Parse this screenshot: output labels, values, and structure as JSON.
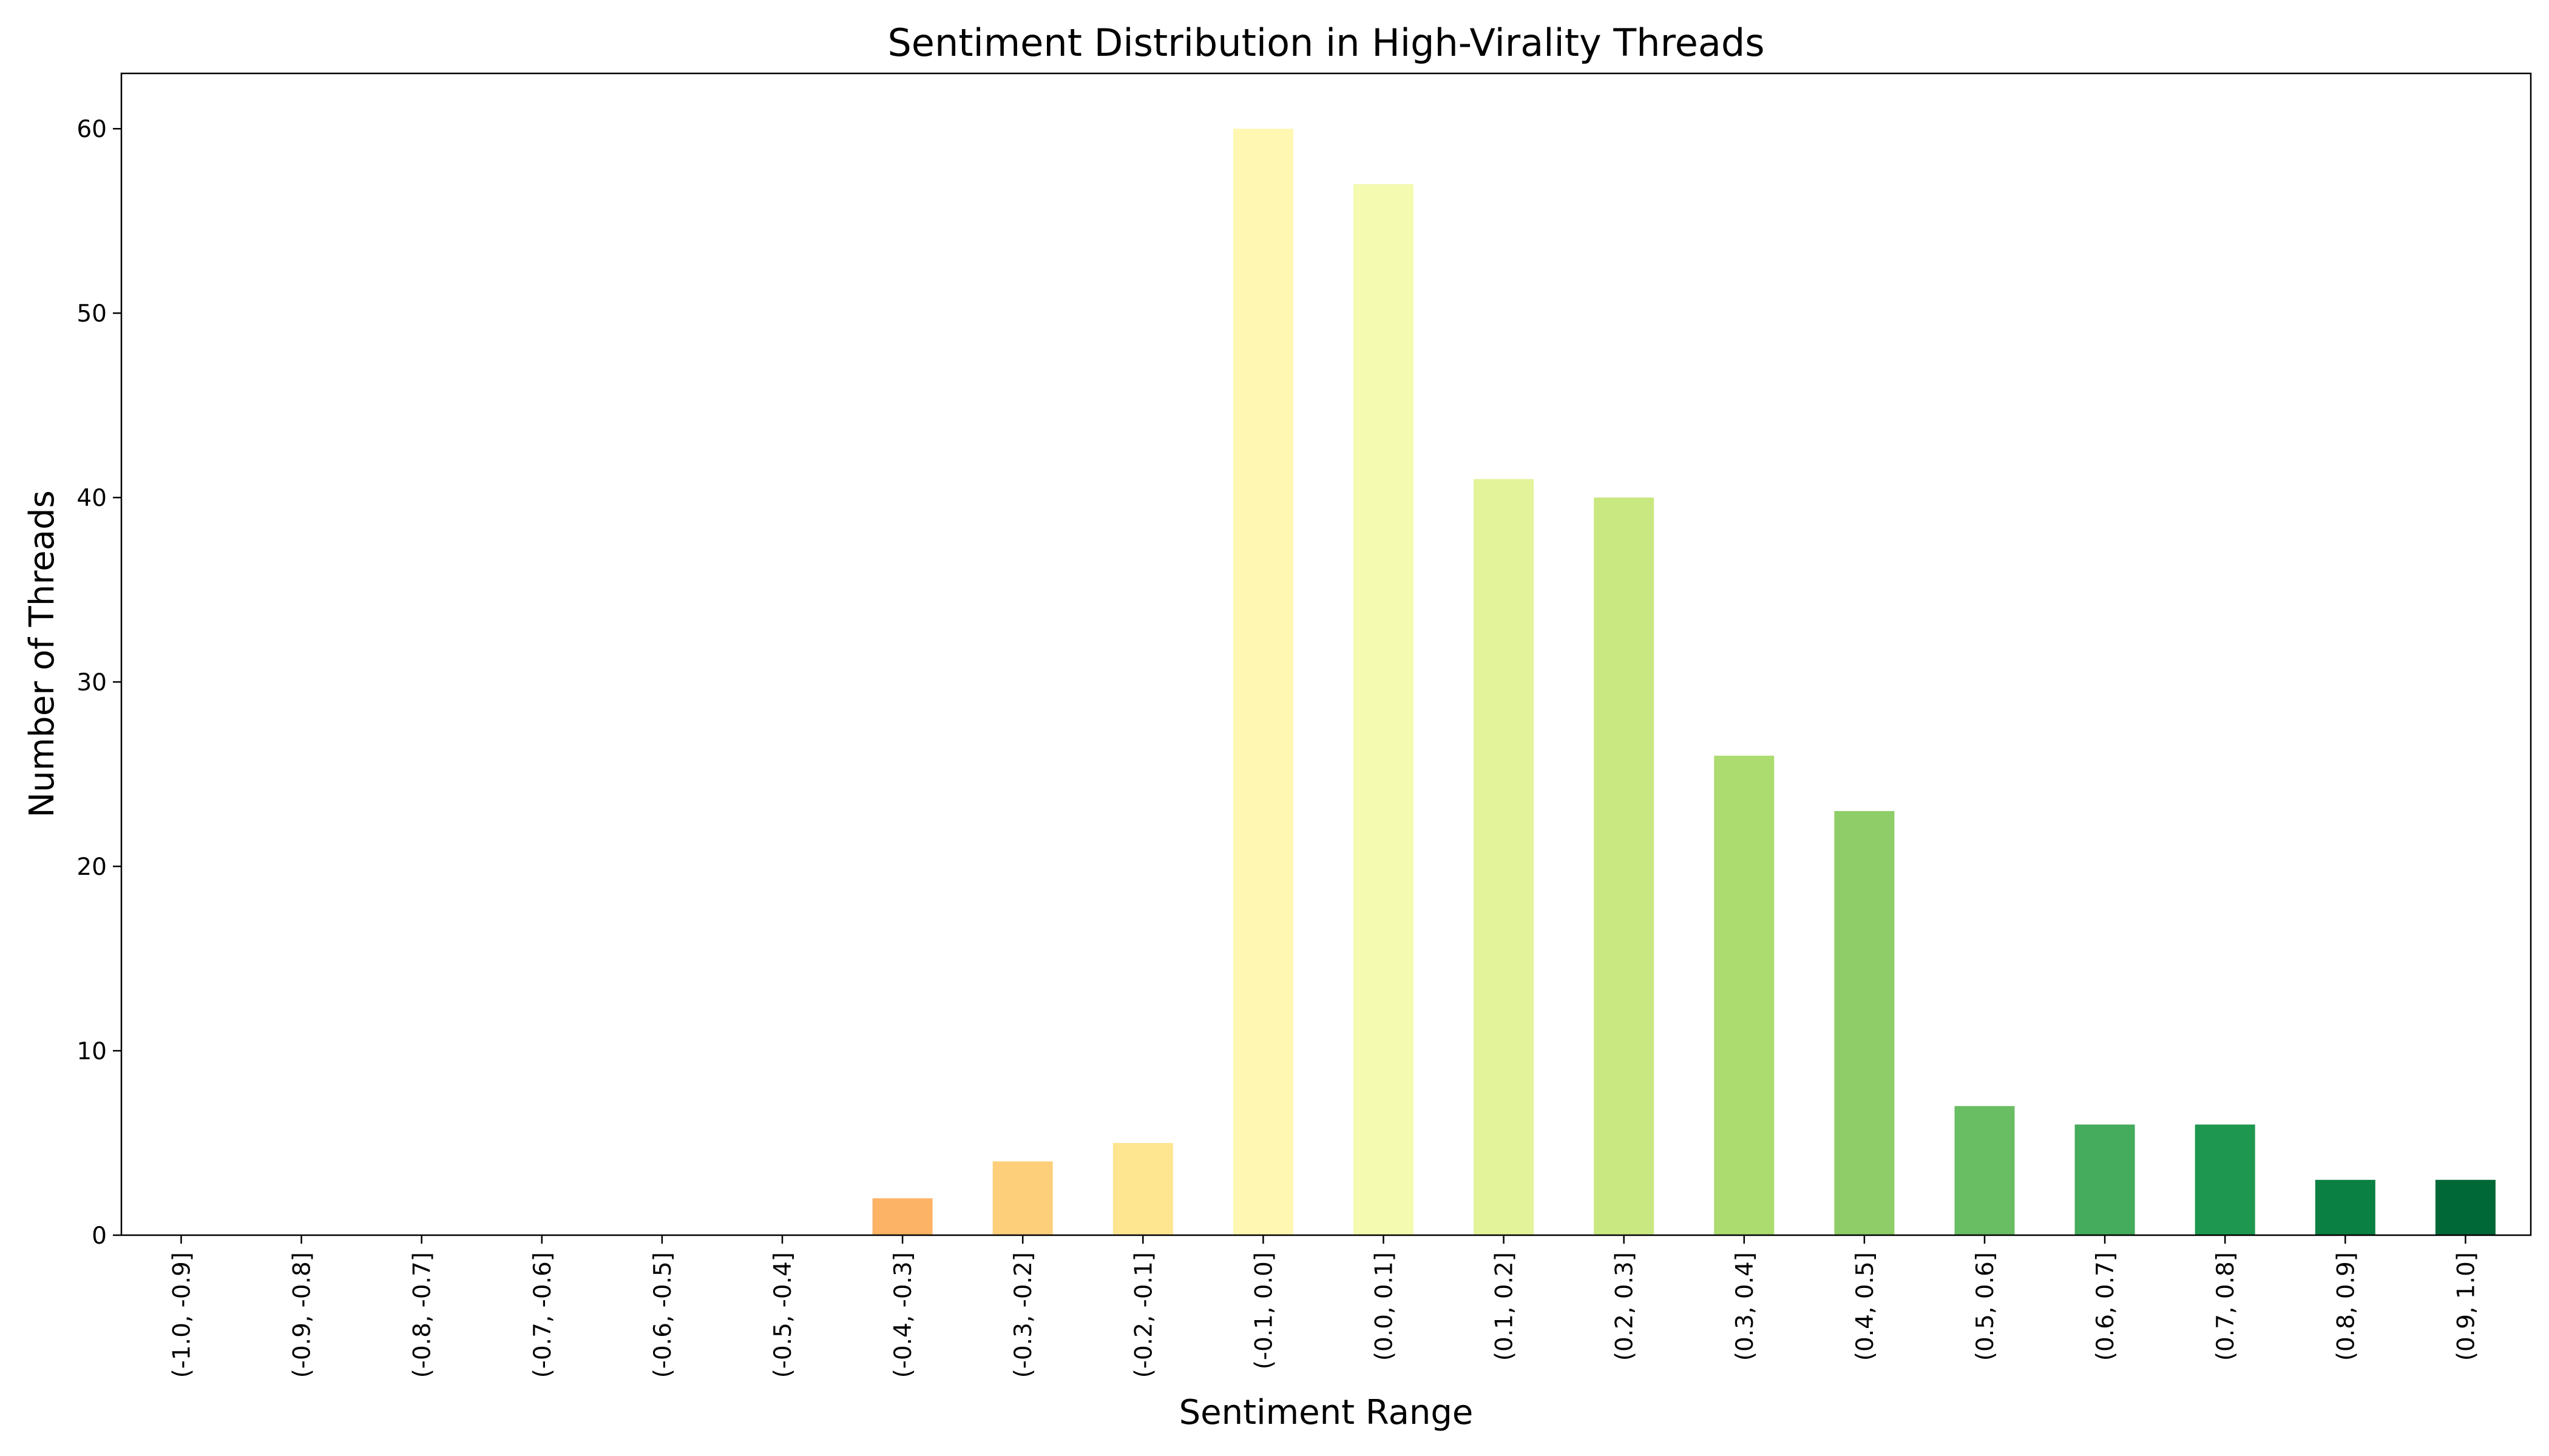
{
  "chart_data": {
    "type": "bar",
    "title": "Sentiment Distribution in High-Virality Threads",
    "xlabel": "Sentiment Range",
    "ylabel": "Number of Threads",
    "ylim": [
      0,
      63
    ],
    "yticks": [
      0,
      10,
      20,
      30,
      40,
      50,
      60
    ],
    "grid": false,
    "categories": [
      "(-1.0, -0.9]",
      "(-0.9, -0.8]",
      "(-0.8, -0.7]",
      "(-0.7, -0.6]",
      "(-0.6, -0.5]",
      "(-0.5, -0.4]",
      "(-0.4, -0.3]",
      "(-0.3, -0.2]",
      "(-0.2, -0.1]",
      "(-0.1, 0.0]",
      "(0.0, 0.1]",
      "(0.1, 0.2]",
      "(0.2, 0.3]",
      "(0.3, 0.4]",
      "(0.4, 0.5]",
      "(0.5, 0.6]",
      "(0.6, 0.7]",
      "(0.7, 0.8]",
      "(0.8, 0.9]",
      "(0.9, 1.0]"
    ],
    "values": [
      0,
      0,
      0,
      0,
      0,
      0,
      2,
      4,
      5,
      60,
      57,
      41,
      40,
      26,
      23,
      7,
      6,
      6,
      3,
      3
    ],
    "colors": [
      "#a50026",
      "#c62a27",
      "#e04f33",
      "#f47d4a",
      "#fa9d58",
      "#fdb365",
      "#fdb365",
      "#fecf7b",
      "#fee590",
      "#fff7b2",
      "#f4fab0",
      "#e2f399",
      "#c9e881",
      "#acdc6f",
      "#8ecd67",
      "#69bd63",
      "#45ab5d",
      "#1e9850",
      "#0b8043",
      "#006837"
    ]
  }
}
